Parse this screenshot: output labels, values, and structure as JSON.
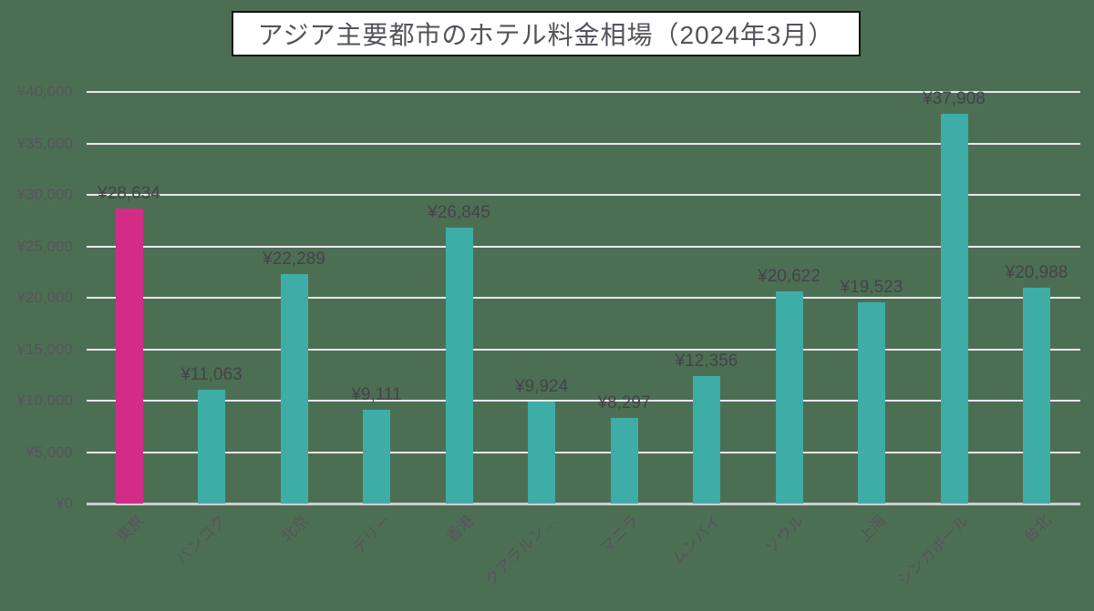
{
  "title": {
    "text": "アジア主要都市のホテル料金相場（2024年3月）"
  },
  "chart_data": {
    "type": "bar",
    "title": "アジア主要都市のホテル料金相場（2024年3月）",
    "categories": [
      "東京",
      "バンコク",
      "北京",
      "デリー",
      "香港",
      "クアラルン…",
      "マニラ",
      "ムンバイ",
      "ソウル",
      "上海",
      "シンガポール",
      "台北"
    ],
    "values": [
      28634,
      11063,
      22289,
      9111,
      26845,
      9924,
      8297,
      12356,
      20622,
      19523,
      37908,
      20988
    ],
    "value_labels": [
      "¥28,634",
      "¥11,063",
      "¥22,289",
      "¥9,111",
      "¥26,845",
      "¥9,924",
      "¥8,297",
      "¥12,356",
      "¥20,622",
      "¥19,523",
      "¥37,908",
      "¥20,988"
    ],
    "y_ticks": [
      {
        "label": "¥40,000",
        "value": 40000
      },
      {
        "label": "¥35,000",
        "value": 35000
      },
      {
        "label": "¥30,000",
        "value": 30000
      },
      {
        "label": "¥25,000",
        "value": 25000
      },
      {
        "label": "¥20,000",
        "value": 20000
      },
      {
        "label": "¥15,000",
        "value": 15000
      },
      {
        "label": "¥10,000",
        "value": 10000
      },
      {
        "label": "¥5,000",
        "value": 5000
      },
      {
        "label": "¥0",
        "value": 0
      }
    ],
    "ylim": [
      0,
      40000
    ],
    "xlabel": "",
    "ylabel": "",
    "grid": true,
    "legend_position": "none",
    "highlight_index": 0,
    "colors": {
      "highlight_bar": "#d22c86",
      "default_bar": "#3fada7",
      "background": "#4c6f53",
      "gridline": "#e9e8ee",
      "axis_line": "#cfced4",
      "label_text": "#45424a",
      "tick_text": "#57545c",
      "title_text": "#55525b",
      "title_box_bg": "#ffffff",
      "title_box_border": "#131313"
    }
  }
}
